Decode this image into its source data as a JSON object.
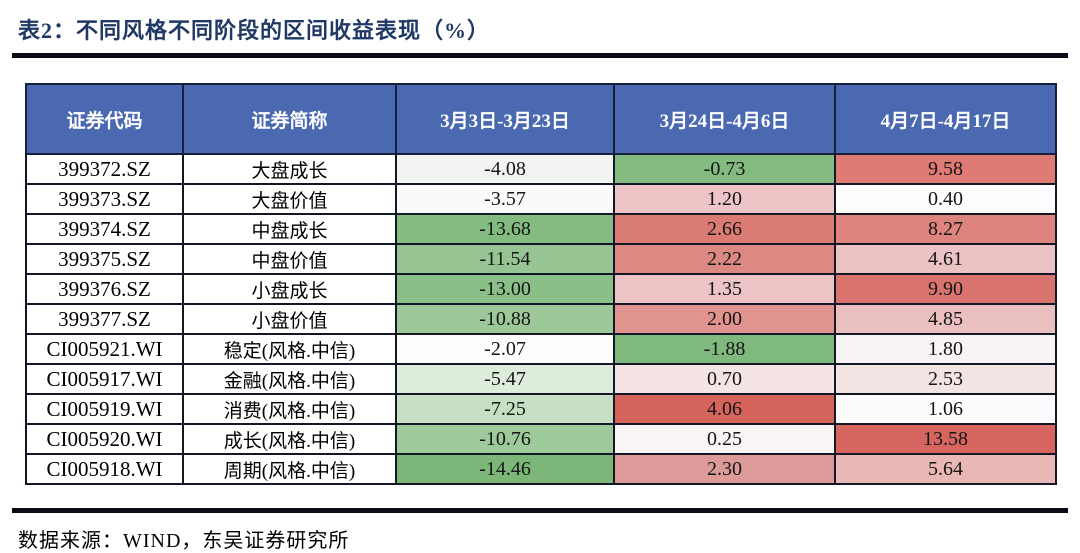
{
  "title": "表2：不同风格不同阶段的区间收益表现（%）",
  "footer": "数据来源：WIND，东吴证券研究所",
  "theme": {
    "header_bg": "#4a69b1",
    "header_text": "#ffffff",
    "title_color": "#1f3864",
    "max_red": "#d5655c",
    "max_green": "#7cb779",
    "neutral_white": "#fdfdfe"
  },
  "chart_data": {
    "type": "table",
    "title": "表2：不同风格不同阶段的区间收益表现（%）",
    "columns": [
      "证券代码",
      "证券简称",
      "3月3日-3月23日",
      "3月24日-4月6日",
      "4月7日-4月17日"
    ],
    "legend_note": "单元格按列三色刻度着色：绿色=收益低/负，白色=中间，红色=收益高/正",
    "rows": [
      {
        "code": "399372.SZ",
        "name": "大盘成长",
        "values": [
          -4.08,
          -0.73,
          9.58
        ],
        "cell_colors": [
          "#f1f4f1",
          "#84bb81",
          "#de7b74"
        ]
      },
      {
        "code": "399373.SZ",
        "name": "大盘价值",
        "values": [
          -3.57,
          1.2,
          0.4
        ],
        "cell_colors": [
          "#fafafc",
          "#eec5c6",
          "#fdfcfe"
        ]
      },
      {
        "code": "399374.SZ",
        "name": "中盘成长",
        "values": [
          -13.68,
          2.66,
          8.27
        ],
        "cell_colors": [
          "#84bb81",
          "#da7b74",
          "#dd847e"
        ]
      },
      {
        "code": "399375.SZ",
        "name": "中盘价值",
        "values": [
          -11.54,
          2.22,
          4.61
        ],
        "cell_colors": [
          "#96c493",
          "#dc8983",
          "#ecc3c4"
        ]
      },
      {
        "code": "399376.SZ",
        "name": "小盘成长",
        "values": [
          -13.0,
          1.35,
          9.9
        ],
        "cell_colors": [
          "#8abf87",
          "#ecc4c6",
          "#d8746d"
        ]
      },
      {
        "code": "399377.SZ",
        "name": "小盘价值",
        "values": [
          -10.88,
          2.0,
          4.85
        ],
        "cell_colors": [
          "#9dc89a",
          "#e0938f",
          "#eabfc0"
        ]
      },
      {
        "code": "CI005921.WI",
        "name": "稳定(风格.中信)",
        "values": [
          -2.07,
          -1.88,
          1.8
        ],
        "cell_colors": [
          "#fdfdfe",
          "#80b97e",
          "#f8f3f5"
        ]
      },
      {
        "code": "CI005917.WI",
        "name": "金融(风格.中信)",
        "values": [
          -5.47,
          0.7,
          2.53
        ],
        "cell_colors": [
          "#ddecdb",
          "#f5e4e6",
          "#f3e4e4"
        ]
      },
      {
        "code": "CI005919.WI",
        "name": "消费(风格.中信)",
        "values": [
          -7.25,
          4.06,
          1.06
        ],
        "cell_colors": [
          "#c7e0c4",
          "#d5655c",
          "#fcfbfd"
        ]
      },
      {
        "code": "CI005920.WI",
        "name": "成长(风格.中信)",
        "values": [
          -10.76,
          0.25,
          13.58
        ],
        "cell_colors": [
          "#9eca9b",
          "#faf4f5",
          "#d5655e"
        ]
      },
      {
        "code": "CI005918.WI",
        "name": "周期(风格.中信)",
        "values": [
          -14.46,
          2.3,
          5.64
        ],
        "cell_colors": [
          "#7cb779",
          "#dc9a98",
          "#e9b7b6"
        ]
      }
    ],
    "source_note": "数据来源：WIND，东吴证券研究所"
  }
}
